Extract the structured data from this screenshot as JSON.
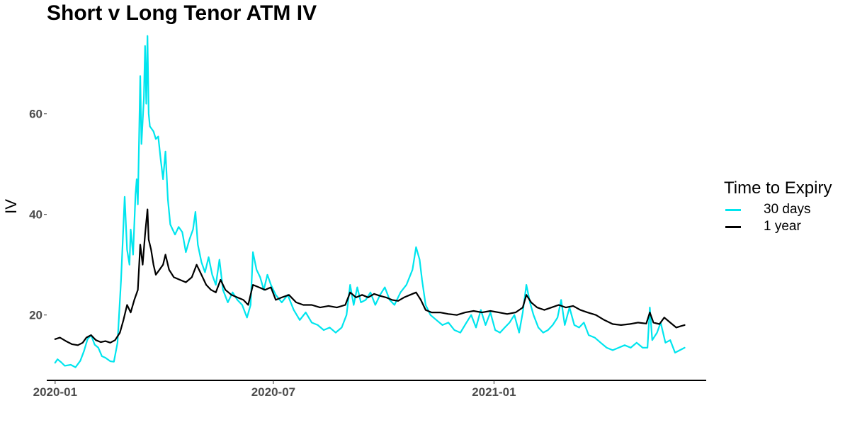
{
  "chart_data": {
    "type": "line",
    "title": "Short v Long Tenor ATM IV",
    "xlabel": "",
    "ylabel": "IV",
    "x_type": "date",
    "xlim": [
      "2019-12-25",
      "2021-06-27"
    ],
    "ylim": [
      7,
      77
    ],
    "x_ticks": [
      "2020-01-01",
      "2020-07-01",
      "2021-01-01"
    ],
    "x_tick_labels": [
      "2020-01",
      "2020-07",
      "2021-01"
    ],
    "y_ticks": [
      20,
      40,
      60
    ],
    "grid": false,
    "legend": {
      "title": "Time to Expiry",
      "placement": "right"
    },
    "series": [
      {
        "name": "30 days",
        "color": "#00e5ee",
        "points": [
          [
            "2020-01-01",
            10.5
          ],
          [
            "2020-01-03",
            11.2
          ],
          [
            "2020-01-06",
            10.6
          ],
          [
            "2020-01-09",
            9.9
          ],
          [
            "2020-01-14",
            10.1
          ],
          [
            "2020-01-18",
            9.6
          ],
          [
            "2020-01-22",
            10.9
          ],
          [
            "2020-01-25",
            12.8
          ],
          [
            "2020-01-28",
            15.2
          ],
          [
            "2020-01-31",
            16.0
          ],
          [
            "2020-02-03",
            14.1
          ],
          [
            "2020-02-06",
            13.5
          ],
          [
            "2020-02-09",
            11.8
          ],
          [
            "2020-02-12",
            11.5
          ],
          [
            "2020-02-16",
            10.8
          ],
          [
            "2020-02-19",
            10.7
          ],
          [
            "2020-02-22",
            14.5
          ],
          [
            "2020-02-25",
            27.0
          ],
          [
            "2020-02-27",
            38.0
          ],
          [
            "2020-02-28",
            43.5
          ],
          [
            "2020-03-01",
            33.0
          ],
          [
            "2020-03-03",
            30.0
          ],
          [
            "2020-03-04",
            37.0
          ],
          [
            "2020-03-06",
            32.0
          ],
          [
            "2020-03-08",
            44.0
          ],
          [
            "2020-03-09",
            47.0
          ],
          [
            "2020-03-10",
            42.0
          ],
          [
            "2020-03-12",
            67.5
          ],
          [
            "2020-03-13",
            54.0
          ],
          [
            "2020-03-15",
            63.0
          ],
          [
            "2020-03-16",
            73.5
          ],
          [
            "2020-03-17",
            62.0
          ],
          [
            "2020-03-18",
            75.5
          ],
          [
            "2020-03-19",
            60.0
          ],
          [
            "2020-03-20",
            57.5
          ],
          [
            "2020-03-23",
            56.5
          ],
          [
            "2020-03-25",
            55.0
          ],
          [
            "2020-03-27",
            55.5
          ],
          [
            "2020-03-29",
            51.0
          ],
          [
            "2020-03-31",
            47.0
          ],
          [
            "2020-04-02",
            52.5
          ],
          [
            "2020-04-04",
            43.0
          ],
          [
            "2020-04-06",
            38.0
          ],
          [
            "2020-04-08",
            37.0
          ],
          [
            "2020-04-10",
            36.0
          ],
          [
            "2020-04-13",
            37.5
          ],
          [
            "2020-04-16",
            36.5
          ],
          [
            "2020-04-19",
            32.5
          ],
          [
            "2020-04-22",
            35.0
          ],
          [
            "2020-04-25",
            37.0
          ],
          [
            "2020-04-27",
            40.5
          ],
          [
            "2020-04-29",
            34.0
          ],
          [
            "2020-05-02",
            30.5
          ],
          [
            "2020-05-05",
            28.5
          ],
          [
            "2020-05-08",
            31.5
          ],
          [
            "2020-05-11",
            28.0
          ],
          [
            "2020-05-14",
            26.0
          ],
          [
            "2020-05-17",
            31.0
          ],
          [
            "2020-05-20",
            25.0
          ],
          [
            "2020-05-24",
            22.5
          ],
          [
            "2020-05-28",
            24.5
          ],
          [
            "2020-06-01",
            23.0
          ],
          [
            "2020-06-05",
            22.0
          ],
          [
            "2020-06-09",
            19.5
          ],
          [
            "2020-06-12",
            22.0
          ],
          [
            "2020-06-14",
            32.5
          ],
          [
            "2020-06-17",
            29.0
          ],
          [
            "2020-06-20",
            27.5
          ],
          [
            "2020-06-23",
            25.0
          ],
          [
            "2020-06-26",
            28.0
          ],
          [
            "2020-06-29",
            26.0
          ],
          [
            "2020-07-03",
            24.0
          ],
          [
            "2020-07-08",
            22.5
          ],
          [
            "2020-07-13",
            24.0
          ],
          [
            "2020-07-18",
            21.0
          ],
          [
            "2020-07-23",
            19.0
          ],
          [
            "2020-07-28",
            20.5
          ],
          [
            "2020-08-02",
            18.5
          ],
          [
            "2020-08-07",
            18.0
          ],
          [
            "2020-08-12",
            17.0
          ],
          [
            "2020-08-17",
            17.5
          ],
          [
            "2020-08-22",
            16.5
          ],
          [
            "2020-08-27",
            17.5
          ],
          [
            "2020-08-31",
            20.0
          ],
          [
            "2020-09-03",
            26.0
          ],
          [
            "2020-09-06",
            22.0
          ],
          [
            "2020-09-09",
            25.5
          ],
          [
            "2020-09-12",
            22.5
          ],
          [
            "2020-09-16",
            23.0
          ],
          [
            "2020-09-20",
            24.5
          ],
          [
            "2020-09-24",
            22.0
          ],
          [
            "2020-09-28",
            24.0
          ],
          [
            "2020-10-02",
            25.5
          ],
          [
            "2020-10-06",
            23.0
          ],
          [
            "2020-10-10",
            22.0
          ],
          [
            "2020-10-15",
            24.5
          ],
          [
            "2020-10-20",
            26.0
          ],
          [
            "2020-10-25",
            29.0
          ],
          [
            "2020-10-28",
            33.5
          ],
          [
            "2020-10-31",
            31.0
          ],
          [
            "2020-11-02",
            27.0
          ],
          [
            "2020-11-05",
            22.0
          ],
          [
            "2020-11-09",
            20.0
          ],
          [
            "2020-11-14",
            19.0
          ],
          [
            "2020-11-19",
            18.0
          ],
          [
            "2020-11-24",
            18.5
          ],
          [
            "2020-11-29",
            17.0
          ],
          [
            "2020-12-04",
            16.5
          ],
          [
            "2020-12-09",
            18.5
          ],
          [
            "2020-12-13",
            20.0
          ],
          [
            "2020-12-17",
            17.5
          ],
          [
            "2020-12-21",
            21.0
          ],
          [
            "2020-12-25",
            18.0
          ],
          [
            "2020-12-29",
            20.5
          ],
          [
            "2021-01-02",
            17.0
          ],
          [
            "2021-01-06",
            16.5
          ],
          [
            "2021-01-10",
            17.5
          ],
          [
            "2021-01-14",
            18.5
          ],
          [
            "2021-01-18",
            20.0
          ],
          [
            "2021-01-22",
            16.5
          ],
          [
            "2021-01-25",
            20.5
          ],
          [
            "2021-01-28",
            26.0
          ],
          [
            "2021-01-31",
            22.5
          ],
          [
            "2021-02-03",
            20.0
          ],
          [
            "2021-02-07",
            17.5
          ],
          [
            "2021-02-11",
            16.5
          ],
          [
            "2021-02-15",
            17.0
          ],
          [
            "2021-02-19",
            18.0
          ],
          [
            "2021-02-23",
            19.5
          ],
          [
            "2021-02-26",
            23.0
          ],
          [
            "2021-03-01",
            18.0
          ],
          [
            "2021-03-05",
            21.5
          ],
          [
            "2021-03-09",
            18.0
          ],
          [
            "2021-03-13",
            17.5
          ],
          [
            "2021-03-17",
            18.5
          ],
          [
            "2021-03-21",
            16.0
          ],
          [
            "2021-03-26",
            15.5
          ],
          [
            "2021-03-31",
            14.5
          ],
          [
            "2021-04-05",
            13.5
          ],
          [
            "2021-04-10",
            13.0
          ],
          [
            "2021-04-15",
            13.5
          ],
          [
            "2021-04-20",
            14.0
          ],
          [
            "2021-04-25",
            13.5
          ],
          [
            "2021-04-30",
            14.5
          ],
          [
            "2021-05-05",
            13.5
          ],
          [
            "2021-05-09",
            13.5
          ],
          [
            "2021-05-11",
            21.5
          ],
          [
            "2021-05-13",
            15.0
          ],
          [
            "2021-05-17",
            16.5
          ],
          [
            "2021-05-20",
            18.5
          ],
          [
            "2021-05-24",
            14.5
          ],
          [
            "2021-05-28",
            15.0
          ],
          [
            "2021-06-01",
            12.5
          ],
          [
            "2021-06-05",
            13.0
          ],
          [
            "2021-06-09",
            13.5
          ]
        ]
      },
      {
        "name": "1 year",
        "color": "#000000",
        "points": [
          [
            "2020-01-01",
            15.2
          ],
          [
            "2020-01-05",
            15.5
          ],
          [
            "2020-01-10",
            14.8
          ],
          [
            "2020-01-15",
            14.2
          ],
          [
            "2020-01-20",
            14.0
          ],
          [
            "2020-01-24",
            14.5
          ],
          [
            "2020-01-27",
            15.5
          ],
          [
            "2020-01-31",
            16.0
          ],
          [
            "2020-02-04",
            15.0
          ],
          [
            "2020-02-08",
            14.6
          ],
          [
            "2020-02-12",
            14.8
          ],
          [
            "2020-02-16",
            14.5
          ],
          [
            "2020-02-20",
            15.0
          ],
          [
            "2020-02-24",
            16.5
          ],
          [
            "2020-02-27",
            19.0
          ],
          [
            "2020-03-01",
            22.0
          ],
          [
            "2020-03-04",
            20.5
          ],
          [
            "2020-03-07",
            23.0
          ],
          [
            "2020-03-10",
            25.0
          ],
          [
            "2020-03-12",
            34.0
          ],
          [
            "2020-03-14",
            30.0
          ],
          [
            "2020-03-16",
            36.0
          ],
          [
            "2020-03-18",
            41.0
          ],
          [
            "2020-03-19",
            35.0
          ],
          [
            "2020-03-21",
            33.0
          ],
          [
            "2020-03-23",
            30.0
          ],
          [
            "2020-03-25",
            28.0
          ],
          [
            "2020-03-28",
            29.0
          ],
          [
            "2020-03-31",
            30.0
          ],
          [
            "2020-04-02",
            32.0
          ],
          [
            "2020-04-05",
            29.0
          ],
          [
            "2020-04-09",
            27.5
          ],
          [
            "2020-04-14",
            27.0
          ],
          [
            "2020-04-19",
            26.5
          ],
          [
            "2020-04-24",
            27.5
          ],
          [
            "2020-04-28",
            30.0
          ],
          [
            "2020-05-02",
            28.0
          ],
          [
            "2020-05-06",
            26.0
          ],
          [
            "2020-05-10",
            25.0
          ],
          [
            "2020-05-14",
            24.5
          ],
          [
            "2020-05-18",
            27.0
          ],
          [
            "2020-05-22",
            25.0
          ],
          [
            "2020-05-27",
            24.0
          ],
          [
            "2020-06-01",
            23.5
          ],
          [
            "2020-06-06",
            23.0
          ],
          [
            "2020-06-10",
            22.0
          ],
          [
            "2020-06-14",
            26.0
          ],
          [
            "2020-06-19",
            25.5
          ],
          [
            "2020-06-24",
            25.0
          ],
          [
            "2020-06-29",
            25.5
          ],
          [
            "2020-07-03",
            23.0
          ],
          [
            "2020-07-08",
            23.5
          ],
          [
            "2020-07-14",
            24.0
          ],
          [
            "2020-07-20",
            22.5
          ],
          [
            "2020-07-26",
            22.0
          ],
          [
            "2020-08-02",
            22.0
          ],
          [
            "2020-08-09",
            21.5
          ],
          [
            "2020-08-16",
            21.8
          ],
          [
            "2020-08-23",
            21.5
          ],
          [
            "2020-08-30",
            22.0
          ],
          [
            "2020-09-03",
            24.5
          ],
          [
            "2020-09-08",
            23.5
          ],
          [
            "2020-09-13",
            24.0
          ],
          [
            "2020-09-18",
            23.5
          ],
          [
            "2020-09-23",
            24.2
          ],
          [
            "2020-09-28",
            23.8
          ],
          [
            "2020-10-03",
            23.5
          ],
          [
            "2020-10-08",
            23.0
          ],
          [
            "2020-10-13",
            22.8
          ],
          [
            "2020-10-18",
            23.5
          ],
          [
            "2020-10-23",
            24.0
          ],
          [
            "2020-10-28",
            24.5
          ],
          [
            "2020-11-01",
            23.0
          ],
          [
            "2020-11-05",
            21.0
          ],
          [
            "2020-11-10",
            20.5
          ],
          [
            "2020-11-17",
            20.5
          ],
          [
            "2020-11-24",
            20.2
          ],
          [
            "2020-12-01",
            20.0
          ],
          [
            "2020-12-08",
            20.5
          ],
          [
            "2020-12-15",
            20.8
          ],
          [
            "2020-12-22",
            20.5
          ],
          [
            "2020-12-29",
            20.8
          ],
          [
            "2021-01-05",
            20.5
          ],
          [
            "2021-01-12",
            20.2
          ],
          [
            "2021-01-19",
            20.5
          ],
          [
            "2021-01-25",
            21.5
          ],
          [
            "2021-01-28",
            24.0
          ],
          [
            "2021-02-01",
            22.5
          ],
          [
            "2021-02-06",
            21.5
          ],
          [
            "2021-02-12",
            21.0
          ],
          [
            "2021-02-18",
            21.5
          ],
          [
            "2021-02-24",
            22.0
          ],
          [
            "2021-03-02",
            21.5
          ],
          [
            "2021-03-08",
            21.8
          ],
          [
            "2021-03-14",
            21.0
          ],
          [
            "2021-03-20",
            20.5
          ],
          [
            "2021-03-27",
            20.0
          ],
          [
            "2021-04-03",
            19.0
          ],
          [
            "2021-04-10",
            18.2
          ],
          [
            "2021-04-17",
            18.0
          ],
          [
            "2021-04-24",
            18.2
          ],
          [
            "2021-05-01",
            18.5
          ],
          [
            "2021-05-08",
            18.3
          ],
          [
            "2021-05-11",
            20.5
          ],
          [
            "2021-05-14",
            18.5
          ],
          [
            "2021-05-19",
            18.2
          ],
          [
            "2021-05-23",
            19.5
          ],
          [
            "2021-05-28",
            18.5
          ],
          [
            "2021-06-02",
            17.5
          ],
          [
            "2021-06-06",
            17.8
          ],
          [
            "2021-06-09",
            18.0
          ]
        ]
      }
    ]
  }
}
